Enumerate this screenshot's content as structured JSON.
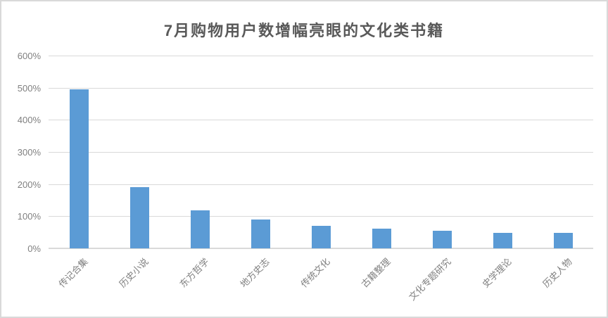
{
  "page": {
    "background": "#ffffff",
    "border_color": "#d9d9d9"
  },
  "chart_data": {
    "type": "bar",
    "title": "7月购物用户数增幅亮眼的文化类书籍",
    "categories": [
      "传记合集",
      "历史小说",
      "东方哲学",
      "地方史志",
      "传统文化",
      "古籍整理",
      "文化专题研究",
      "史学理论",
      "历史人物"
    ],
    "values": [
      495,
      190,
      118,
      90,
      71,
      62,
      55,
      49,
      49
    ],
    "unit": "%",
    "xlabel": "",
    "ylabel": "",
    "ylim": [
      0,
      600
    ],
    "ytick_step": 100,
    "ytick_labels": [
      "0%",
      "100%",
      "200%",
      "300%",
      "400%",
      "500%",
      "600%"
    ],
    "x_label_rotation_deg": 45,
    "grid": "horizontal",
    "legend": "none",
    "bar_color": "#5B9BD5",
    "grid_color": "#d9d9d9",
    "axis_label_color": "#808080",
    "title_color": "#595959"
  }
}
